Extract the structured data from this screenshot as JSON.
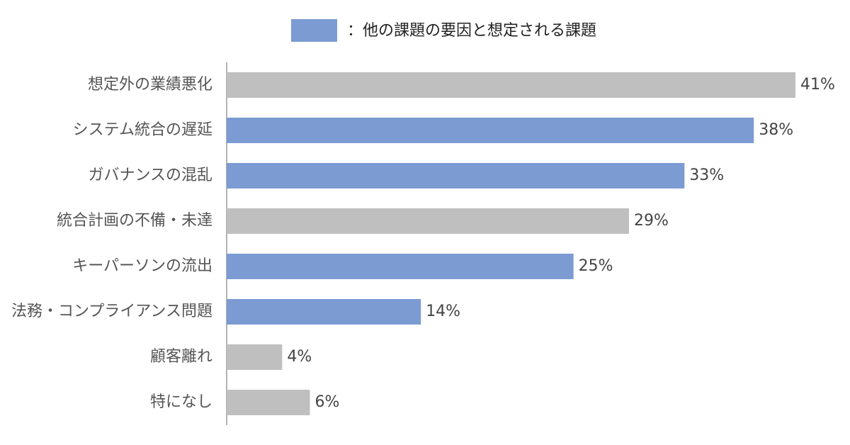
{
  "chart_data": {
    "type": "barh",
    "legend": {
      "label": "：他の課題の要因と想定される課題",
      "color": "#7b9bd2"
    },
    "categories": [
      "想定外の業績悪化",
      "システム統合の遅延",
      "ガバナンスの混乱",
      "統合計画の不備・未達",
      "キーパーソンの流出",
      "法務・コンプライアンス問題",
      "顧客離れ",
      "特になし"
    ],
    "values": [
      41,
      38,
      33,
      29,
      25,
      14,
      4,
      6
    ],
    "value_labels": [
      "41%",
      "38%",
      "33%",
      "29%",
      "25%",
      "14%",
      "4%",
      "6%"
    ],
    "colors": [
      "#bfbfbf",
      "#7b9bd2",
      "#7b9bd2",
      "#bfbfbf",
      "#7b9bd2",
      "#7b9bd2",
      "#bfbfbf",
      "#bfbfbf"
    ]
  }
}
